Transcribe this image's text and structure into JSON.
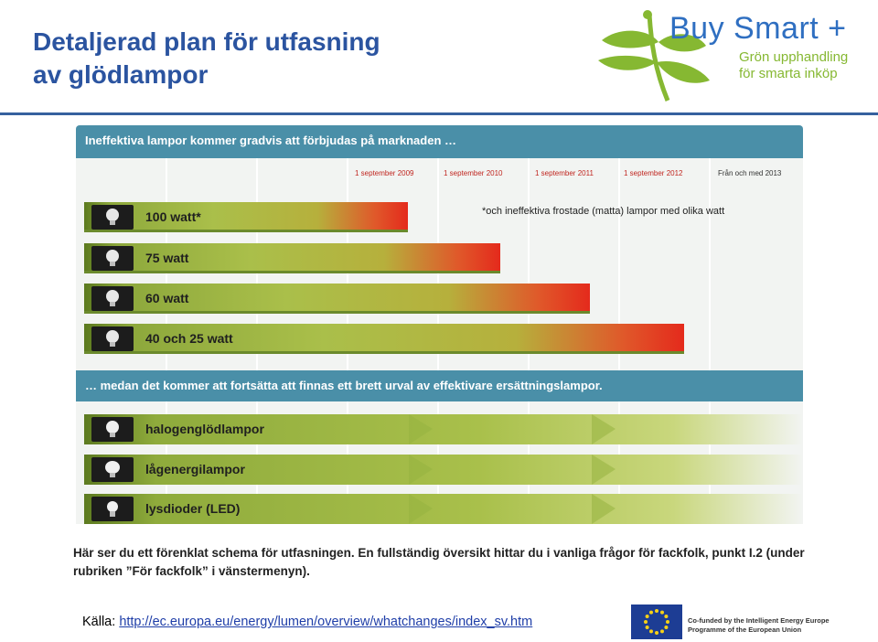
{
  "title": {
    "line1": "Detaljerad plan för utfasning",
    "line2": "av glödlampor"
  },
  "logo": {
    "name": "Buy Smart +",
    "tagline1": "Grön upphandling",
    "tagline2": "för smarta inköp",
    "brand_color": "#2f6fc1",
    "accent_color": "#86b832"
  },
  "figure": {
    "header": "Ineffektiva lampor kommer gradvis att förbjudas på marknaden …",
    "dates": [
      "1 september 2009",
      "1 september 2010",
      "1 september 2011",
      "1 september 2012",
      "Från och med 2013"
    ],
    "footnote": "*och ineffektiva frostade (matta) lampor med olika watt",
    "phase_out": [
      {
        "label": "100 watt*",
        "banned_from": "1 september 2009"
      },
      {
        "label": "75 watt",
        "banned_from": "1 september 2010"
      },
      {
        "label": "60 watt",
        "banned_from": "1 september 2011"
      },
      {
        "label": "40 och 25 watt",
        "banned_from": "1 september 2012"
      }
    ],
    "middle": "… medan det kommer att fortsätta att finnas ett brett urval av effektivare ersättningslampor.",
    "replacements": [
      {
        "label": "halogenglödlampor"
      },
      {
        "label": "lågenergilampor"
      },
      {
        "label": "lysdioder (LED)"
      }
    ],
    "caption": "Här ser du ett förenklat schema för utfasningen. En fullständig översikt hittar du i vanliga frågor för fackfolk, punkt I.2 (under rubriken ”För fackfolk” i vänstermenyn).",
    "header_color": "#4a8fa8",
    "ban_color": "#e42a1c",
    "bar_green": "#8da83c"
  },
  "source": {
    "label": "Källa:",
    "url": "http://ec.europa.eu/energy/lumen/overview/whatchanges/index_sv.htm"
  },
  "eu": {
    "line1": "Co-funded by the Intelligent Energy Europe",
    "line2": "Programme of the European Union"
  }
}
